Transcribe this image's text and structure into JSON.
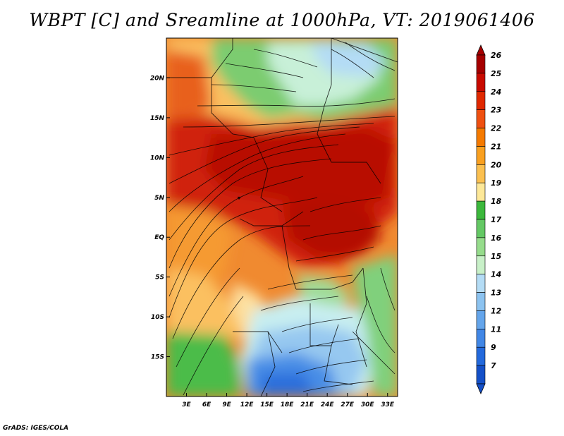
{
  "title": "WBPT [C] and Sreamline at 1000hPa, VT: 2019061406",
  "footer": "GrADS: IGES/COLA",
  "map": {
    "lat_labels": [
      "20N",
      "15N",
      "10N",
      "5N",
      "EQ",
      "5S",
      "10S",
      "15S"
    ],
    "lat_values": [
      20,
      15,
      10,
      5,
      0,
      -5,
      -10,
      -15
    ],
    "lon_labels": [
      "3E",
      "6E",
      "9E",
      "12E",
      "15E",
      "18E",
      "21E",
      "24E",
      "27E",
      "30E",
      "33E"
    ],
    "lon_values": [
      3,
      6,
      9,
      12,
      15,
      18,
      21,
      24,
      27,
      30,
      33
    ],
    "lat_range": [
      -20,
      25
    ],
    "lon_range": [
      0,
      34.5
    ]
  },
  "colorbar": {
    "levels": [
      "26",
      "25",
      "24",
      "23",
      "22",
      "21",
      "20",
      "19",
      "18",
      "17",
      "16",
      "15",
      "14",
      "13",
      "12",
      "11",
      "9",
      "7"
    ],
    "colors": [
      "#a50000",
      "#c80a00",
      "#e02800",
      "#ef5010",
      "#f57a00",
      "#f9a020",
      "#fbc050",
      "#fde898",
      "#3cb83c",
      "#64c864",
      "#96dc8c",
      "#c8f0c8",
      "#b4dcf5",
      "#8cc3f0",
      "#64a5eb",
      "#4187e6",
      "#2369dc",
      "#1450c8"
    ]
  }
}
